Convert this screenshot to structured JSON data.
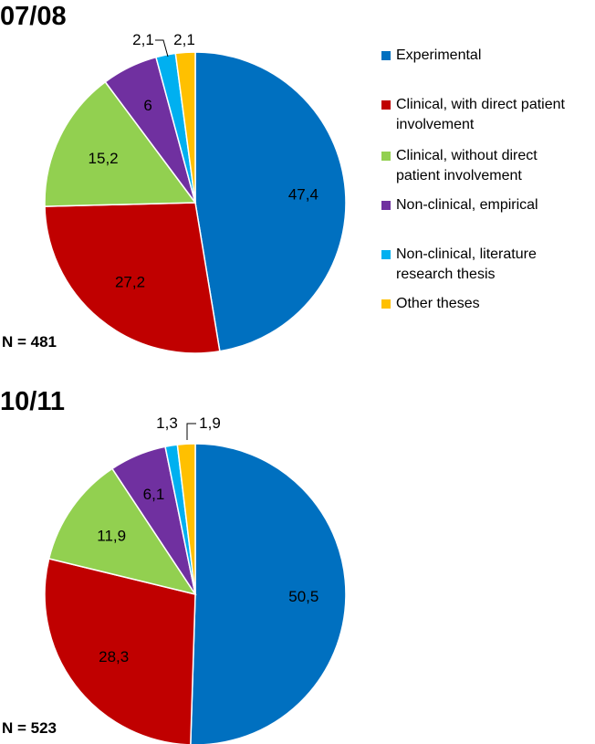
{
  "chart_data": [
    {
      "type": "pie",
      "title": "07/08",
      "note": "N = 481",
      "categories": [
        "Experimental",
        "Clinical, with direct patient involvement",
        "Clinical, without direct patient involvement",
        "Non-clinical, empirical",
        "Non-clinical, literature research thesis",
        "Other theses"
      ],
      "values": [
        47.4,
        27.2,
        15.2,
        6,
        2.1,
        2.1
      ],
      "value_labels": [
        "47,4",
        "27,2",
        "15,2",
        "6",
        "2,1",
        "2,1"
      ]
    },
    {
      "type": "pie",
      "title": "10/11",
      "note": "N = 523",
      "categories": [
        "Experimental",
        "Clinical, with direct patient involvement",
        "Clinical, without direct patient involvement",
        "Non-clinical, empirical",
        "Non-clinical, literature research thesis",
        "Other theses"
      ],
      "values": [
        50.5,
        28.3,
        11.9,
        6.1,
        1.3,
        1.9
      ],
      "value_labels": [
        "50,5",
        "28,3",
        "11,9",
        "6,1",
        "1,3",
        "1,9"
      ]
    }
  ],
  "legend": {
    "placement": "right",
    "items": [
      {
        "label_lines": [
          "Experimental"
        ],
        "color": "#0070C0"
      },
      {
        "label_lines": [
          "Clinical, with direct patient",
          "involvement"
        ],
        "color": "#C00000"
      },
      {
        "label_lines": [
          "Clinical, without direct",
          "patient involvement"
        ],
        "color": "#92D050"
      },
      {
        "label_lines": [
          "Non-clinical, empirical"
        ],
        "color": "#7030A0"
      },
      {
        "label_lines": [
          "Non-clinical, literature",
          "research thesis"
        ],
        "color": "#00B0F0"
      },
      {
        "label_lines": [
          "Other theses"
        ],
        "color": "#FFC000"
      }
    ]
  }
}
